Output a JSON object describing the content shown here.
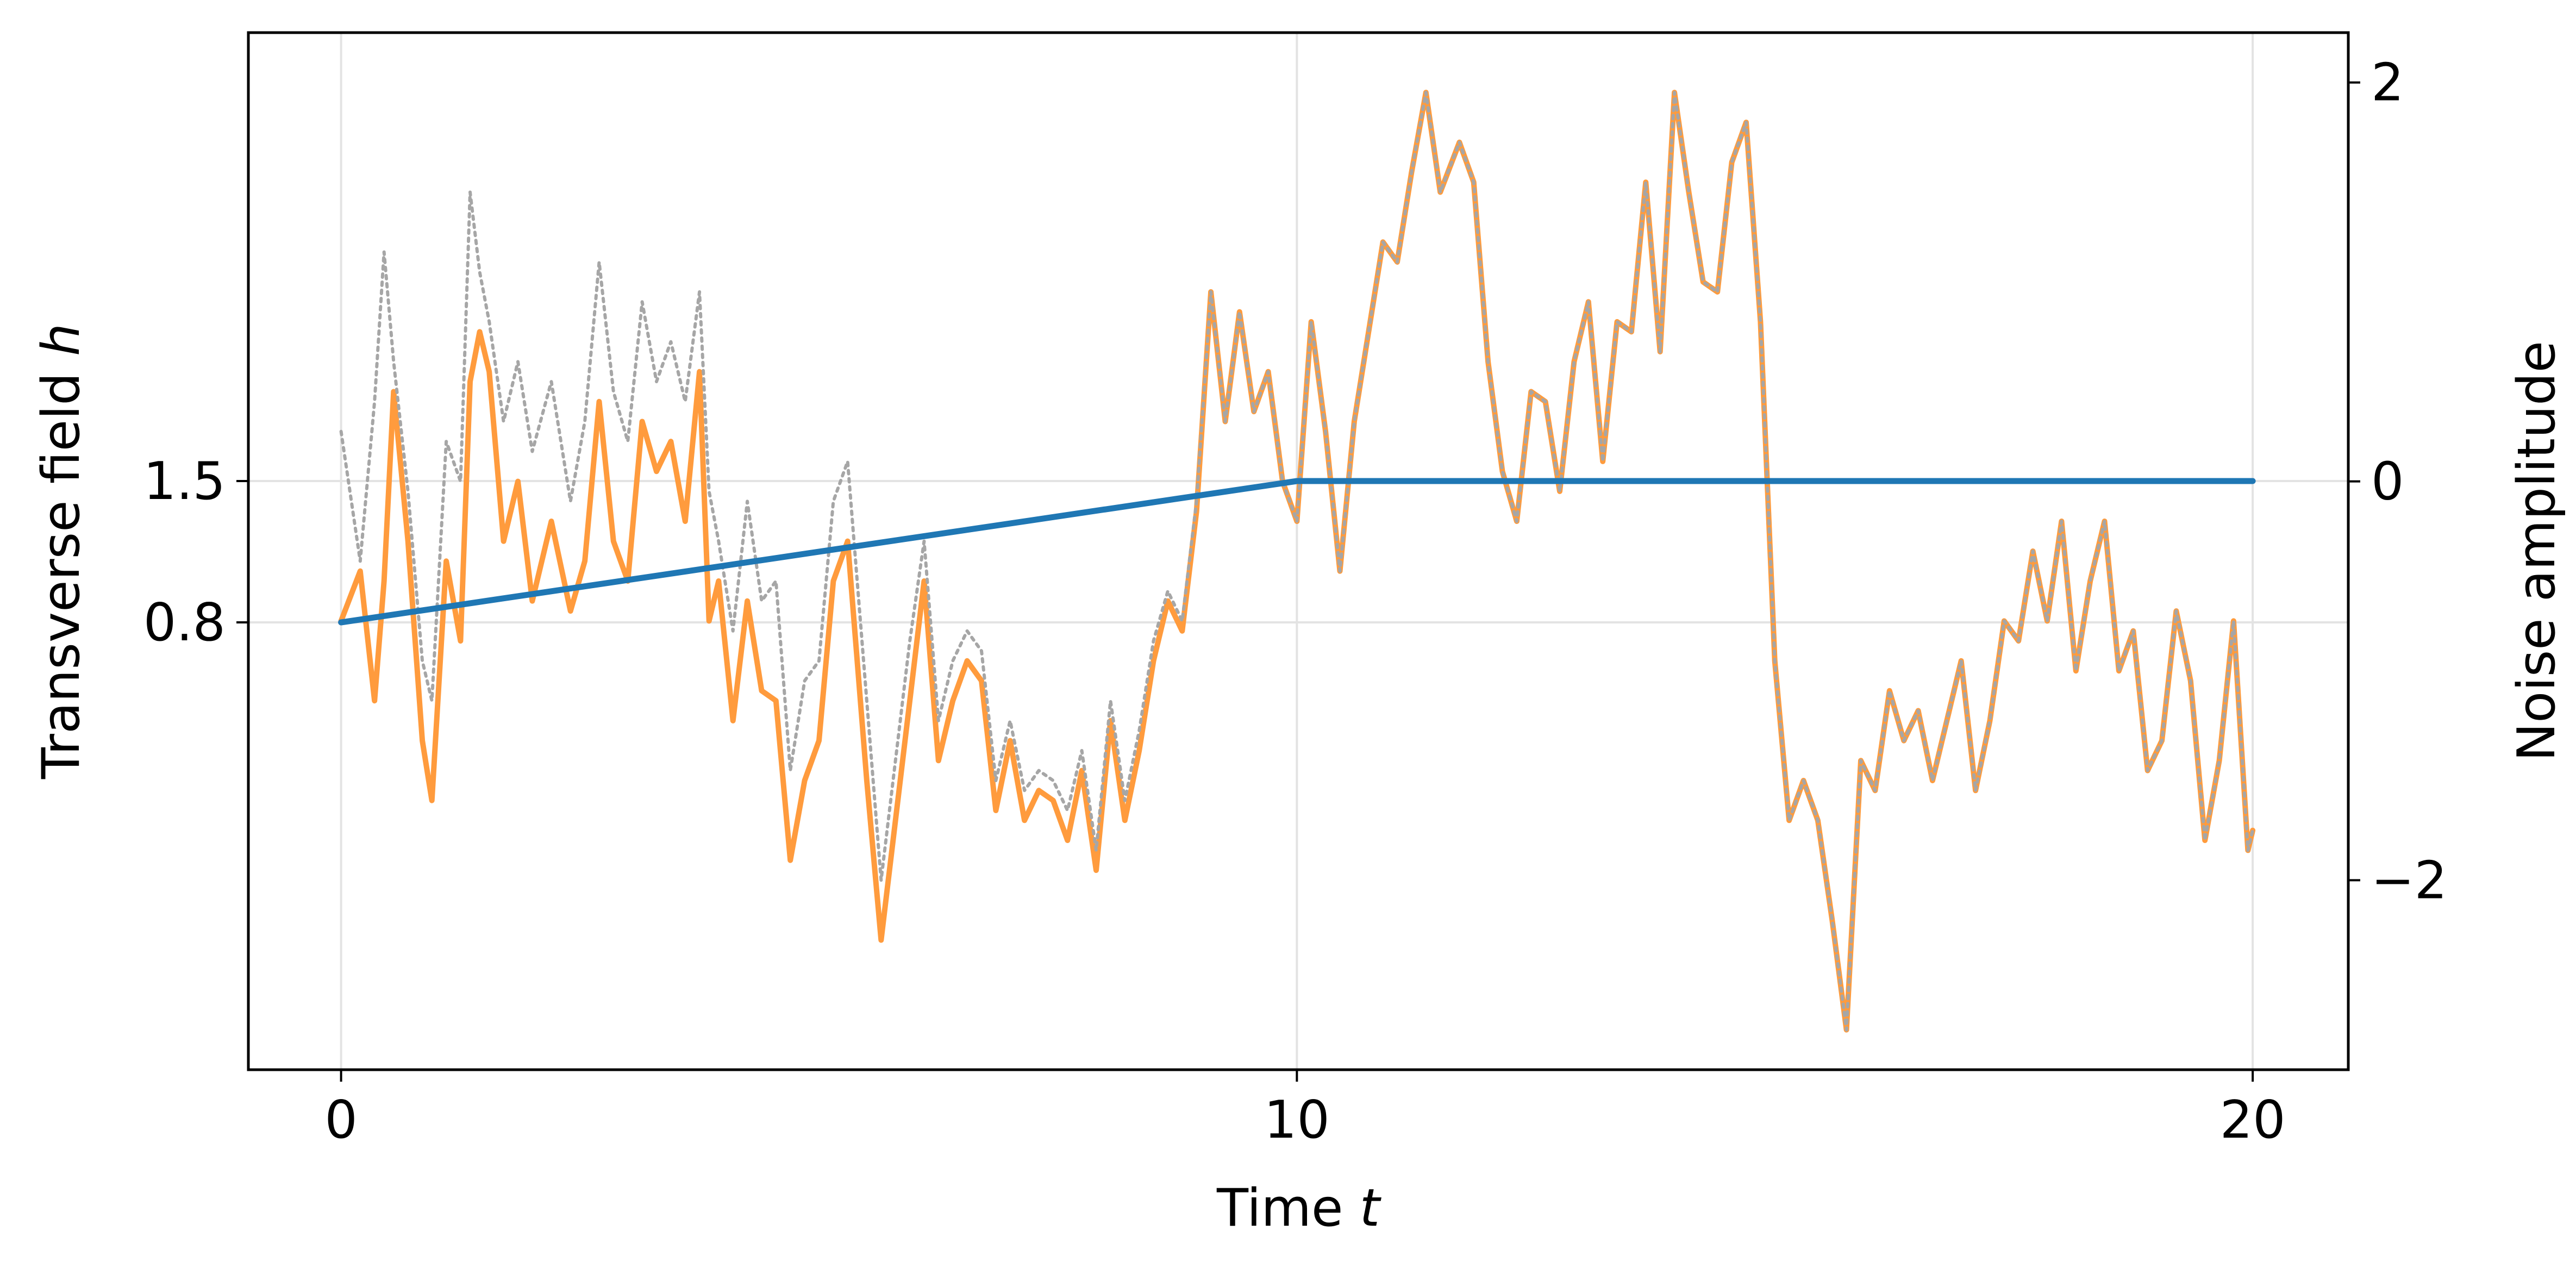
{
  "chart_data": {
    "type": "line",
    "xlabel": "Time",
    "xlabel_var": "t",
    "ylabel_left": "Transverse field",
    "ylabel_left_var": "h",
    "ylabel_right": "Noise amplitude",
    "x_ticks": [
      0,
      10,
      20
    ],
    "x_tick_labels": [
      "0",
      "10",
      "20"
    ],
    "left_ticks": [
      0.8,
      1.5
    ],
    "left_tick_labels": [
      "0.8",
      "1.5"
    ],
    "right_ticks": [
      -2,
      0,
      2
    ],
    "right_tick_labels": [
      "−2",
      "0",
      "2"
    ],
    "xlim": [
      -0.97,
      21.0
    ],
    "right_ylim": [
      -2.95,
      2.25
    ],
    "grid": true,
    "colors": {
      "field": "#1f77b4",
      "noise_filtered": "#ff9b3d",
      "noise_raw": "#a6a6a6",
      "grid": "#e3e3e3"
    },
    "series": [
      {
        "key": "field",
        "axis": "left",
        "x": [
          0,
          10,
          20
        ],
        "values": [
          0.8,
          1.5,
          1.5
        ]
      },
      {
        "key": "noise_filtered",
        "axis": "right",
        "x": [
          0,
          0.2,
          0.35,
          0.45,
          0.55,
          0.7,
          0.85,
          0.95,
          1.1,
          1.25,
          1.35,
          1.45,
          1.55,
          1.7,
          1.85,
          2.0,
          2.2,
          2.4,
          2.55,
          2.7,
          2.85,
          3.0,
          3.15,
          3.3,
          3.45,
          3.6,
          3.75,
          3.85,
          3.95,
          4.1,
          4.25,
          4.4,
          4.55,
          4.7,
          4.85,
          5.0,
          5.15,
          5.3,
          5.5,
          5.65,
          5.8,
          5.95,
          6.1,
          6.25,
          6.4,
          6.55,
          6.7,
          6.85,
          7.0,
          7.15,
          7.3,
          7.45,
          7.6,
          7.75,
          7.9,
          8.05,
          8.2,
          8.35,
          8.5,
          8.65,
          8.8,
          8.95,
          9.1,
          9.25,
          9.4,
          9.55,
          9.7,
          9.85,
          10.0,
          10.15,
          10.3,
          10.45,
          10.6,
          10.75,
          10.9,
          11.05,
          11.2,
          11.35,
          11.5,
          11.7,
          11.85,
          12.0,
          12.15,
          12.3,
          12.45,
          12.6,
          12.75,
          12.9,
          13.05,
          13.2,
          13.35,
          13.5,
          13.65,
          13.8,
          13.95,
          14.1,
          14.25,
          14.4,
          14.55,
          14.7,
          14.85,
          15.0,
          15.15,
          15.3,
          15.45,
          15.6,
          15.75,
          15.9,
          16.05,
          16.2,
          16.35,
          16.5,
          16.65,
          16.8,
          16.95,
          17.1,
          17.25,
          17.4,
          17.55,
          17.7,
          17.85,
          18.0,
          18.15,
          18.3,
          18.45,
          18.6,
          18.75,
          18.9,
          19.05,
          19.2,
          19.35,
          19.5,
          19.65,
          19.8,
          19.95,
          20.0
        ],
        "values": [
          -0.7,
          -0.45,
          -1.1,
          -0.5,
          0.45,
          -0.3,
          -1.3,
          -1.6,
          -0.4,
          -0.8,
          0.5,
          0.75,
          0.55,
          -0.3,
          0.0,
          -0.6,
          -0.2,
          -0.65,
          -0.4,
          0.4,
          -0.3,
          -0.5,
          0.3,
          0.05,
          0.2,
          -0.2,
          0.55,
          -0.7,
          -0.5,
          -1.2,
          -0.6,
          -1.05,
          -1.1,
          -1.9,
          -1.5,
          -1.3,
          -0.5,
          -0.3,
          -1.5,
          -2.3,
          -1.7,
          -1.1,
          -0.5,
          -1.4,
          -1.1,
          -0.9,
          -1.0,
          -1.65,
          -1.3,
          -1.7,
          -1.55,
          -1.6,
          -1.8,
          -1.45,
          -1.95,
          -1.2,
          -1.7,
          -1.35,
          -0.9,
          -0.6,
          -0.75,
          -0.15,
          0.95,
          0.3,
          0.85,
          0.35,
          0.55,
          0.0,
          -0.2,
          0.8,
          0.25,
          -0.45,
          0.3,
          0.75,
          1.2,
          1.1,
          1.55,
          1.95,
          1.45,
          1.7,
          1.5,
          0.6,
          0.05,
          -0.2,
          0.45,
          0.4,
          -0.05,
          0.6,
          0.9,
          0.1,
          0.8,
          0.75,
          1.5,
          0.65,
          1.95,
          1.45,
          1.0,
          0.95,
          1.6,
          1.8,
          0.8,
          -0.9,
          -1.7,
          -1.5,
          -1.7,
          -2.2,
          -2.75,
          -1.4,
          -1.55,
          -1.05,
          -1.3,
          -1.15,
          -1.5,
          -1.2,
          -0.9,
          -1.55,
          -1.2,
          -0.7,
          -0.8,
          -0.35,
          -0.7,
          -0.2,
          -0.95,
          -0.5,
          -0.2,
          -0.95,
          -0.75,
          -1.45,
          -1.3,
          -0.65,
          -1.0,
          -1.8,
          -1.4,
          -0.7,
          -1.85,
          -1.75
        ]
      },
      {
        "key": "noise_raw",
        "axis": "right",
        "x": [
          0,
          0.2,
          0.35,
          0.45,
          0.55,
          0.7,
          0.85,
          0.95,
          1.1,
          1.25,
          1.35,
          1.45,
          1.55,
          1.7,
          1.85,
          2.0,
          2.2,
          2.4,
          2.55,
          2.7,
          2.85,
          3.0,
          3.15,
          3.3,
          3.45,
          3.6,
          3.75,
          3.85,
          3.95,
          4.1,
          4.25,
          4.4,
          4.55,
          4.7,
          4.85,
          5.0,
          5.15,
          5.3,
          5.5,
          5.65,
          5.8,
          5.95,
          6.1,
          6.25,
          6.4,
          6.55,
          6.7,
          6.85,
          7.0,
          7.15,
          7.3,
          7.45,
          7.6,
          7.75,
          7.9,
          8.05,
          8.2,
          8.35,
          8.5,
          8.65,
          8.8,
          8.95,
          9.1,
          9.25,
          9.4,
          9.55,
          9.7,
          9.85,
          10.0,
          10.15,
          10.3,
          10.45,
          10.6,
          10.75,
          10.9,
          11.05,
          11.2,
          11.35,
          11.5,
          11.7,
          11.85,
          12.0,
          12.15,
          12.3,
          12.45,
          12.6,
          12.75,
          12.9,
          13.05,
          13.2,
          13.35,
          13.5,
          13.65,
          13.8,
          13.95,
          14.1,
          14.25,
          14.4,
          14.55,
          14.7,
          14.85,
          15.0,
          15.15,
          15.3,
          15.45,
          15.6,
          15.75,
          15.9,
          16.05,
          16.2,
          16.35,
          16.5,
          16.65,
          16.8,
          16.95,
          17.1,
          17.25,
          17.4,
          17.55,
          17.7,
          17.85,
          18.0,
          18.15,
          18.3,
          18.45,
          18.6,
          18.75,
          18.9,
          19.05,
          19.2,
          19.35,
          19.5,
          19.65,
          19.8,
          19.95,
          20.0
        ],
        "values": [
          0.25,
          -0.4,
          0.4,
          1.15,
          0.6,
          -0.05,
          -0.9,
          -1.1,
          0.2,
          0.0,
          1.45,
          1.05,
          0.8,
          0.3,
          0.6,
          0.15,
          0.5,
          -0.1,
          0.3,
          1.1,
          0.45,
          0.2,
          0.9,
          0.5,
          0.7,
          0.4,
          0.95,
          -0.05,
          -0.3,
          -0.75,
          -0.1,
          -0.6,
          -0.5,
          -1.45,
          -1.0,
          -0.9,
          -0.1,
          0.1,
          -1.1,
          -2.0,
          -1.4,
          -0.8,
          -0.3,
          -1.2,
          -0.9,
          -0.75,
          -0.85,
          -1.5,
          -1.2,
          -1.55,
          -1.45,
          -1.5,
          -1.65,
          -1.35,
          -1.85,
          -1.1,
          -1.6,
          -1.25,
          -0.8,
          -0.55,
          -0.7,
          -0.1,
          0.95,
          0.3,
          0.85,
          0.35,
          0.55,
          0.0,
          -0.2,
          0.8,
          0.25,
          -0.45,
          0.3,
          0.75,
          1.2,
          1.1,
          1.55,
          1.95,
          1.45,
          1.7,
          1.5,
          0.6,
          0.05,
          -0.2,
          0.45,
          0.4,
          -0.05,
          0.6,
          0.9,
          0.1,
          0.8,
          0.75,
          1.5,
          0.65,
          1.95,
          1.45,
          1.0,
          0.95,
          1.6,
          1.8,
          0.8,
          -0.9,
          -1.7,
          -1.5,
          -1.7,
          -2.2,
          -2.75,
          -1.4,
          -1.55,
          -1.05,
          -1.3,
          -1.15,
          -1.5,
          -1.2,
          -0.9,
          -1.55,
          -1.2,
          -0.7,
          -0.8,
          -0.35,
          -0.7,
          -0.2,
          -0.95,
          -0.5,
          -0.2,
          -0.95,
          -0.75,
          -1.45,
          -1.3,
          -0.65,
          -1.0,
          -1.8,
          -1.4,
          -0.7,
          -1.85,
          -1.75
        ]
      }
    ]
  }
}
